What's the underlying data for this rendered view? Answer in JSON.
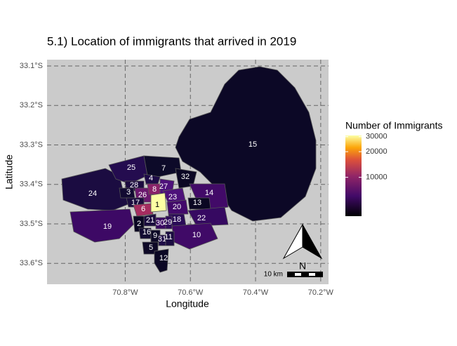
{
  "chart_data": {
    "type": "choropleth",
    "title": "5.1) Location of immigrants that arrived in 2019",
    "x_label": "Longitude",
    "y_label": "Latitude",
    "xlim": [
      -71.04,
      -70.176
    ],
    "ylim": [
      -33.653,
      -33.084
    ],
    "xticks": [
      {
        "value": -70.8,
        "label": "70.8°W"
      },
      {
        "value": -70.6,
        "label": "70.6°W"
      },
      {
        "value": -70.4,
        "label": "70.4°W"
      },
      {
        "value": -70.2,
        "label": "70.2°W"
      }
    ],
    "yticks": [
      {
        "value": -33.1,
        "label": "33.1°S"
      },
      {
        "value": -33.2,
        "label": "33.2°S"
      },
      {
        "value": -33.3,
        "label": "33.3°S"
      },
      {
        "value": -33.4,
        "label": "33.4°S"
      },
      {
        "value": -33.5,
        "label": "33.5°S"
      },
      {
        "value": -33.6,
        "label": "33.6°S"
      }
    ],
    "grid": true,
    "legend": {
      "title": "Number of Immigrants",
      "scale": "log",
      "lim": [
        3500,
        31000
      ],
      "ticks": [
        10000,
        20000,
        30000
      ]
    },
    "scale_bar": "10 km",
    "north": "N",
    "regions": [
      {
        "label": "15",
        "color": "#0c0826"
      },
      {
        "label": "24",
        "color": "#1b0c41"
      },
      {
        "label": "25",
        "color": "#240c4f"
      },
      {
        "label": "7",
        "color": "#0d0a29"
      },
      {
        "label": "32",
        "color": "#0b0724"
      },
      {
        "label": "4",
        "color": "#1f0c48"
      },
      {
        "label": "28",
        "color": "#1c0b40"
      },
      {
        "label": "3",
        "color": "#120a32"
      },
      {
        "label": "26",
        "color": "#6a176e"
      },
      {
        "label": "8",
        "color": "#8a226a"
      },
      {
        "label": "27",
        "color": "#4e117b"
      },
      {
        "label": "14",
        "color": "#420a68"
      },
      {
        "label": "17",
        "color": "#1a0b3e"
      },
      {
        "label": "23",
        "color": "#4d117a"
      },
      {
        "label": "6",
        "color": "#a52c60"
      },
      {
        "label": "1",
        "color": "#fcffa4"
      },
      {
        "label": "20",
        "color": "#430a6b"
      },
      {
        "label": "13",
        "color": "#0a0722"
      },
      {
        "label": "22",
        "color": "#360961"
      },
      {
        "label": "19",
        "color": "#3d0965"
      },
      {
        "label": "18",
        "color": "#2a0b57"
      },
      {
        "label": "21",
        "color": "#1a0b3e"
      },
      {
        "label": "2",
        "color": "#0a0722"
      },
      {
        "label": "30",
        "color": "#3a0963"
      },
      {
        "label": "29",
        "color": "#2e0a5a"
      },
      {
        "label": "10",
        "color": "#400a67"
      },
      {
        "label": "16",
        "color": "#120a32"
      },
      {
        "label": "9",
        "color": "#0c0826"
      },
      {
        "label": "31",
        "color": "#1f0c48"
      },
      {
        "label": "11",
        "color": "#1b0c41"
      },
      {
        "label": "5",
        "color": "#0d0826"
      },
      {
        "label": "12",
        "color": "#0b0724"
      }
    ]
  }
}
